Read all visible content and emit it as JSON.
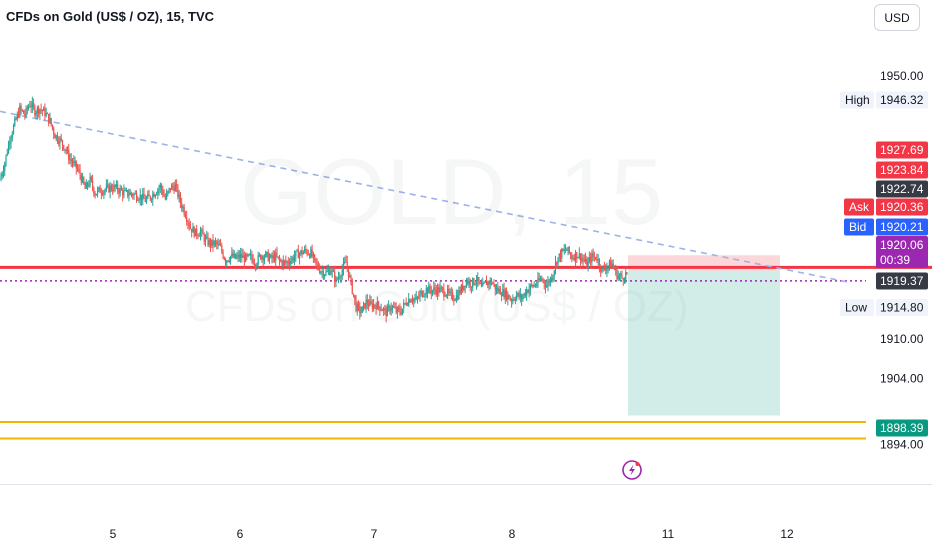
{
  "header": {
    "title": "CFDs on Gold (US$ / OZ), 15, TVC",
    "currency": "USD"
  },
  "watermark": {
    "symbol": "GOLD, 15",
    "description": "CFDs on Gold (US$ / OZ)"
  },
  "colors": {
    "up": "#26a69a",
    "down": "#ef5350",
    "resistance_line": "#f23645",
    "support_band": "#f7b500",
    "trendline": "#9db2e6",
    "current_price": "#9c27b0",
    "ask": "#f23645",
    "bid": "#2962ff",
    "target": "#089981"
  },
  "chart_data": {
    "type": "candlestick",
    "symbol": "CFDs on Gold (US$ / OZ)",
    "interval": "15",
    "source": "TVC",
    "ylim": [
      1889.5,
      1960.0
    ],
    "y_ticks": [
      1950.0,
      1910.0,
      1904.0,
      1894.0
    ],
    "x_ticks": [
      "5",
      "6",
      "7",
      "8",
      "11",
      "12"
    ],
    "session_high": {
      "label": "High",
      "value": "1946.32"
    },
    "session_low": {
      "label": "Low",
      "value": "1914.80"
    },
    "price_badges": [
      {
        "label": "",
        "value": "1927.69",
        "kind": "down"
      },
      {
        "label": "",
        "value": "1923.84",
        "kind": "down"
      },
      {
        "label": "",
        "value": "1922.74",
        "kind": "dark"
      },
      {
        "label": "Ask",
        "value": "1920.36",
        "kind": "ask"
      },
      {
        "label": "Bid",
        "value": "1920.21",
        "kind": "bid"
      },
      {
        "label": "",
        "value": "1919.37",
        "kind": "dark"
      },
      {
        "label": "",
        "value": "1898.39",
        "kind": "target"
      }
    ],
    "current_price": {
      "value": "1920.06",
      "countdown": "00:39"
    },
    "levels": {
      "resistance": 1920.9,
      "current_dotted": 1918.85,
      "support_upper": 1897.4,
      "support_lower": 1894.9
    },
    "trendline": {
      "start": 1944.6,
      "end": 1918.6
    },
    "position": {
      "entry": 1920.36,
      "stop": 1922.74,
      "target": 1898.39
    },
    "ohlc_path": [
      1934.1,
      1936.8,
      1940.5,
      1942.8,
      1944.9,
      1944.1,
      1945.8,
      1944.7,
      1945.0,
      1944.4,
      1943.1,
      1941.0,
      1940.2,
      1939.1,
      1937.3,
      1936.4,
      1935.0,
      1932.8,
      1934.1,
      1932.2,
      1932.6,
      1932.7,
      1933.0,
      1933.0,
      1932.6,
      1932.1,
      1932.1,
      1931.9,
      1931.7,
      1931.1,
      1931.6,
      1932.4,
      1933.2,
      1931.3,
      1933.0,
      1933.2,
      1930.8,
      1929.1,
      1926.9,
      1926.1,
      1926.3,
      1925.0,
      1924.5,
      1924.5,
      1923.8,
      1922.0,
      1922.6,
      1922.3,
      1922.6,
      1922.2,
      1922.4,
      1921.6,
      1922.7,
      1922.7,
      1922.2,
      1922.5,
      1921.7,
      1921.6,
      1922.0,
      1922.8,
      1923.1,
      1923.4,
      1923.0,
      1921.3,
      1920.4,
      1920.0,
      1920.6,
      1918.8,
      1920.2,
      1921.7,
      1918.4,
      1914.9,
      1914.1,
      1915.6,
      1915.1,
      1915.2,
      1914.8,
      1914.0,
      1915.0,
      1914.2,
      1914.3,
      1915.7,
      1916.3,
      1915.9,
      1916.9,
      1917.5,
      1917.4,
      1917.5,
      1917.4,
      1917.1,
      1916.4,
      1916.5,
      1917.6,
      1918.9,
      1918.4,
      1919.1,
      1917.6,
      1918.6,
      1918.7,
      1917.5,
      1917.2,
      1916.7,
      1916.0,
      1916.7,
      1916.2,
      1917.4,
      1918.0,
      1918.4,
      1919.2,
      1918.2,
      1919.5,
      1922.0,
      1923.1,
      1923.6,
      1922.5,
      1922.9,
      1922.3,
      1921.3,
      1922.5,
      1922.4,
      1920.4,
      1921.1,
      1921.4,
      1919.8,
      1919.3,
      1920.06
    ]
  }
}
